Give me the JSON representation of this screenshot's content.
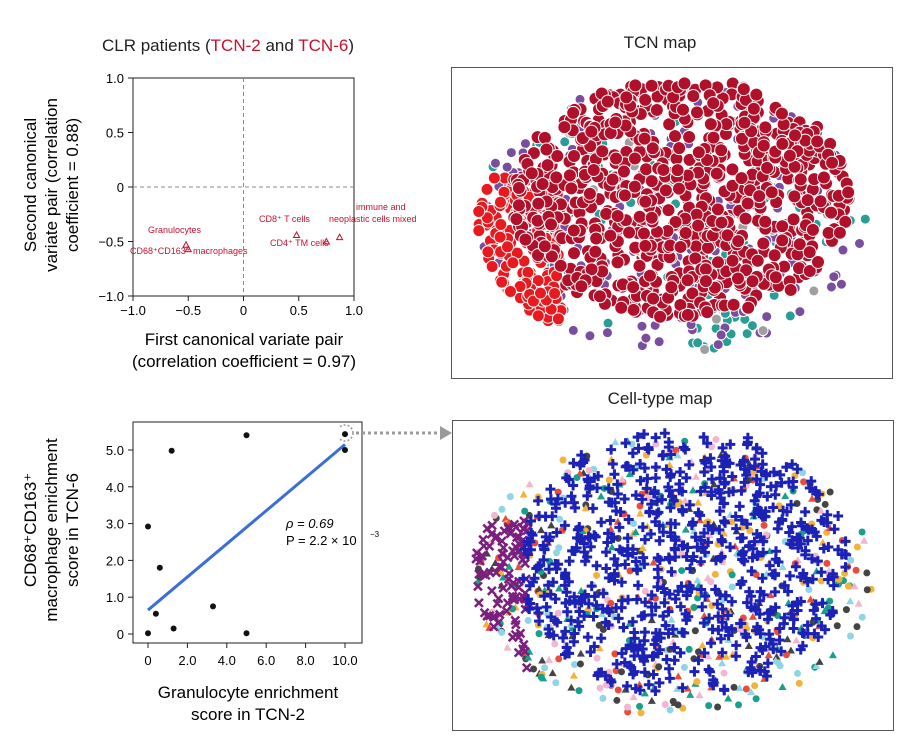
{
  "colors": {
    "red": "#c8102e",
    "crimson": "#b0102a",
    "bright_red": "#e8191f",
    "purple": "#7a4e9e",
    "teal": "#2a9d96",
    "gray": "#a0a0a0",
    "navy": "#1b22b5",
    "line_blue": "#3a6ed8",
    "arrow_gray": "#9a9a9a"
  },
  "panel_a": {
    "title_prefix": "CLR patients (",
    "title_tcn2": "TCN-2",
    "title_and": " and ",
    "title_tcn6": "TCN-6",
    "title_suffix": ")"
  },
  "panel_b": {
    "title": "TCN map"
  },
  "panel_d": {
    "title": "Cell-type map"
  },
  "chart_data": [
    {
      "type": "scatter",
      "title": "CLR patients (TCN-2 and TCN-6)",
      "xlabel": "First canonical variate pair (correlation coefficient = 0.97)",
      "xlabel_lines": [
        "First canonical variate pair",
        "(correlation coefficient = 0.97)"
      ],
      "ylabel": "Second canonical variate pair (correlation coefficient = 0.88)",
      "ylabel_lines": [
        "Second canonical",
        "variate pair (correlation",
        "coefficient = 0.88)"
      ],
      "xlim": [
        -1.0,
        1.0
      ],
      "ylim": [
        -1.0,
        1.0
      ],
      "xticks": [
        -1.0,
        -0.5,
        0,
        0.5,
        1.0
      ],
      "xtick_labels": [
        "−1.0",
        "−0.5",
        "0",
        "0.5",
        "1.0"
      ],
      "yticks": [
        1.0,
        0.5,
        0,
        -0.5,
        -1.0
      ],
      "ytick_labels": [
        "1.0",
        "0.5",
        "0",
        "−0.5",
        "−1.0"
      ],
      "reference_lines": [
        "x = 0",
        "y = 0"
      ],
      "points": [
        {
          "label": "Granulocytes",
          "x": -0.52,
          "y": -0.53
        },
        {
          "label": "CD68+CD163+ macrophages",
          "x": -0.5,
          "y": -0.57
        },
        {
          "label": "CD8+ T cells",
          "x": 0.48,
          "y": -0.44
        },
        {
          "label": "CD4+ TM cells",
          "x": 0.75,
          "y": -0.5
        },
        {
          "label": "immune and neoplastic cells mixed",
          "x": 0.87,
          "y": -0.46
        }
      ],
      "annotations": {
        "granulocytes": "Granulocytes",
        "macrophages": "CD68⁺CD163⁺ macrophages",
        "cd8": "CD8⁺ T cells",
        "cd4": "CD4⁺ TM cells",
        "mixed_line1": "immune and",
        "mixed_line2": "neoplastic cells mixed"
      }
    },
    {
      "type": "scatter",
      "title": "",
      "xlabel": "Granulocyte enrichment score in TCN-2",
      "xlabel_lines": [
        "Granulocyte enrichment",
        "score in TCN-2"
      ],
      "ylabel": "CD68+CD163+ macrophage enrichment score in TCN-6",
      "ylabel_lines": [
        "CD68⁺CD163⁺",
        "macrophage enrichment",
        "score in TCN-6"
      ],
      "xlim": [
        0,
        10.0
      ],
      "ylim": [
        0,
        5.5
      ],
      "xticks": [
        0,
        2.0,
        4.0,
        6.0,
        8.0,
        10.0
      ],
      "xtick_labels": [
        "0",
        "2.0",
        "4.0",
        "6.0",
        "8.0",
        "10.0"
      ],
      "yticks": [
        0,
        1.0,
        2.0,
        3.0,
        4.0,
        5.0
      ],
      "ytick_labels": [
        "0",
        "1.0",
        "2.0",
        "3.0",
        "4.0",
        "5.0"
      ],
      "points_x": [
        0.0,
        0.0,
        0.4,
        0.6,
        1.2,
        1.3,
        3.3,
        5.0,
        5.0,
        10.0,
        10.0
      ],
      "points_y": [
        2.92,
        0.02,
        0.55,
        1.8,
        4.98,
        0.15,
        0.75,
        5.4,
        0.02,
        5.43,
        5.0
      ],
      "highlighted_point": {
        "x": 10.0,
        "y": 5.43
      },
      "fit_line": {
        "x": [
          0.0,
          10.0
        ],
        "y": [
          0.65,
          5.15
        ]
      },
      "stats": {
        "rho_label": "ρ = 0.69",
        "p_label": "P = 2.2 × 10",
        "p_exponent": "−3"
      }
    }
  ]
}
